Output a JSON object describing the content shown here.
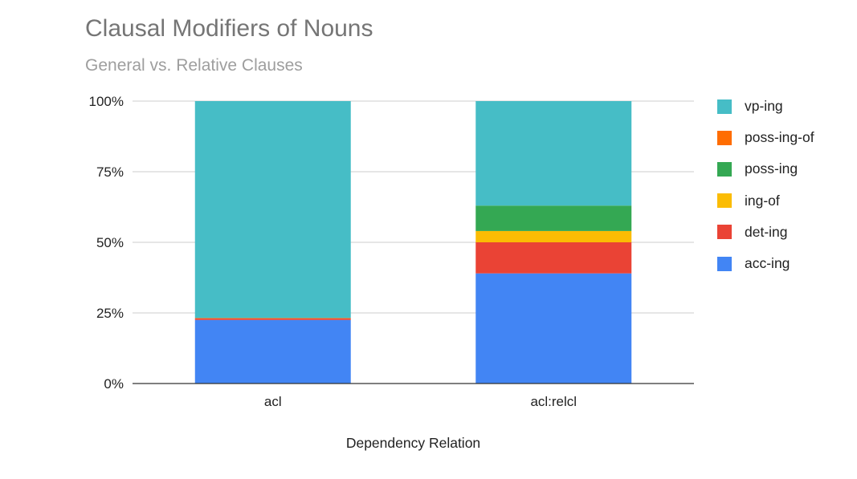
{
  "chart_data": {
    "type": "bar",
    "stacked": true,
    "normalized": true,
    "title": "Clausal Modifiers of Nouns",
    "subtitle": "General vs. Relative Clauses",
    "xlabel": "Dependency Relation",
    "ylabel": "",
    "ylim": [
      0,
      100
    ],
    "y_ticks": [
      "0%",
      "25%",
      "50%",
      "75%",
      "100%"
    ],
    "categories": [
      "acl",
      "acl:relcl"
    ],
    "series": [
      {
        "name": "acc-ing",
        "color": "#4285f4",
        "values": [
          22.5,
          39
        ]
      },
      {
        "name": "det-ing",
        "color": "#ea4335",
        "values": [
          0.5,
          11
        ]
      },
      {
        "name": "ing-of",
        "color": "#fbbc04",
        "values": [
          0,
          4
        ]
      },
      {
        "name": "poss-ing",
        "color": "#34a853",
        "values": [
          0,
          9
        ]
      },
      {
        "name": "poss-ing-of",
        "color": "#ff6d01",
        "values": [
          0.2,
          0
        ]
      },
      {
        "name": "vp-ing",
        "color": "#46bdc6",
        "values": [
          76.8,
          37
        ]
      }
    ],
    "grid": true,
    "legend_position": "right"
  }
}
